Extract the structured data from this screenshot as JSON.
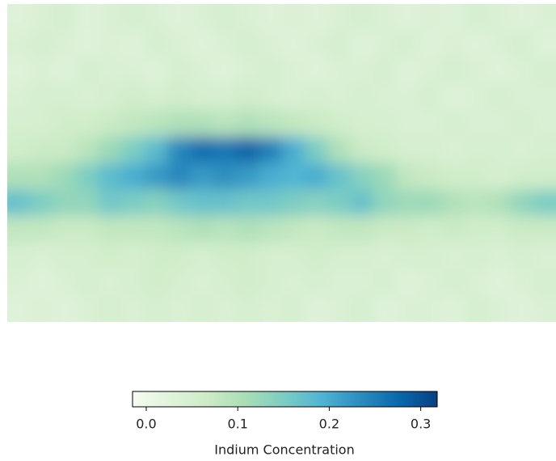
{
  "chart_data": {
    "type": "heatmap",
    "colormap": [
      "#f7fcf0",
      "#e0f3db",
      "#ccebc5",
      "#a8ddb5",
      "#7bccc4",
      "#4eb3d3",
      "#2b8cbe",
      "#0868ac",
      "#084081"
    ],
    "clim": [
      -0.015,
      0.318
    ],
    "colorbar_ticks": [
      {
        "value": 0,
        "label": "0.0"
      },
      0.1,
      0.2,
      0.3
    ],
    "colorbar_label": "Indium Concentration",
    "values": [
      [
        0.03,
        0.04,
        0.05,
        0.03,
        0.04,
        0.05,
        0.04,
        0.03,
        0.04,
        0.05,
        0.04,
        0.03,
        0.04,
        0.03,
        0.04,
        0.05,
        0.04,
        0.03,
        0.04,
        0.03,
        0.05,
        0.04,
        0.03,
        0.04
      ],
      [
        0.04,
        0.05,
        0.04,
        0.03,
        0.04,
        0.03,
        0.05,
        0.04,
        0.03,
        0.04,
        0.05,
        0.04,
        0.03,
        0.04,
        0.05,
        0.03,
        0.04,
        0.05,
        0.03,
        0.04,
        0.03,
        0.04,
        0.05,
        0.03
      ],
      [
        0.03,
        0.04,
        0.03,
        0.05,
        0.04,
        0.04,
        0.03,
        0.05,
        0.04,
        0.03,
        0.04,
        0.05,
        0.04,
        0.03,
        0.04,
        0.04,
        0.05,
        0.03,
        0.04,
        0.05,
        0.04,
        0.03,
        0.04,
        0.05
      ],
      [
        0.04,
        0.05,
        0.05,
        0.04,
        0.05,
        0.06,
        0.05,
        0.06,
        0.05,
        0.05,
        0.06,
        0.05,
        0.04,
        0.05,
        0.04,
        0.05,
        0.04,
        0.04,
        0.05,
        0.03,
        0.04,
        0.05,
        0.04,
        0.04
      ],
      [
        0.05,
        0.05,
        0.06,
        0.06,
        0.07,
        0.08,
        0.09,
        0.1,
        0.1,
        0.09,
        0.1,
        0.09,
        0.08,
        0.07,
        0.06,
        0.05,
        0.05,
        0.04,
        0.04,
        0.05,
        0.04,
        0.04,
        0.05,
        0.04
      ],
      [
        0.06,
        0.07,
        0.07,
        0.09,
        0.12,
        0.15,
        0.18,
        0.24,
        0.27,
        0.26,
        0.28,
        0.25,
        0.2,
        0.15,
        0.1,
        0.07,
        0.06,
        0.05,
        0.05,
        0.04,
        0.05,
        0.05,
        0.04,
        0.05
      ],
      [
        0.1,
        0.1,
        0.12,
        0.15,
        0.18,
        0.2,
        0.22,
        0.24,
        0.22,
        0.23,
        0.22,
        0.2,
        0.19,
        0.2,
        0.17,
        0.14,
        0.12,
        0.08,
        0.07,
        0.06,
        0.06,
        0.05,
        0.06,
        0.06
      ],
      [
        0.17,
        0.15,
        0.13,
        0.13,
        0.16,
        0.15,
        0.14,
        0.16,
        0.17,
        0.17,
        0.16,
        0.16,
        0.15,
        0.14,
        0.15,
        0.17,
        0.13,
        0.12,
        0.12,
        0.1,
        0.09,
        0.1,
        0.13,
        0.15
      ],
      [
        0.08,
        0.08,
        0.07,
        0.07,
        0.08,
        0.08,
        0.08,
        0.09,
        0.1,
        0.09,
        0.1,
        0.09,
        0.08,
        0.07,
        0.08,
        0.08,
        0.07,
        0.07,
        0.06,
        0.07,
        0.06,
        0.06,
        0.07,
        0.07
      ],
      [
        0.05,
        0.04,
        0.05,
        0.05,
        0.06,
        0.05,
        0.06,
        0.06,
        0.05,
        0.06,
        0.06,
        0.05,
        0.05,
        0.06,
        0.05,
        0.05,
        0.04,
        0.05,
        0.05,
        0.04,
        0.05,
        0.04,
        0.05,
        0.04
      ],
      [
        0.04,
        0.03,
        0.04,
        0.05,
        0.04,
        0.05,
        0.06,
        0.05,
        0.04,
        0.05,
        0.06,
        0.05,
        0.04,
        0.05,
        0.04,
        0.04,
        0.05,
        0.03,
        0.04,
        0.05,
        0.04,
        0.03,
        0.04,
        0.05
      ],
      [
        0.03,
        0.04,
        0.03,
        0.04,
        0.05,
        0.04,
        0.05,
        0.04,
        0.05,
        0.04,
        0.05,
        0.04,
        0.05,
        0.03,
        0.04,
        0.05,
        0.03,
        0.04,
        0.04,
        0.03,
        0.05,
        0.04,
        0.03,
        0.04
      ]
    ]
  }
}
